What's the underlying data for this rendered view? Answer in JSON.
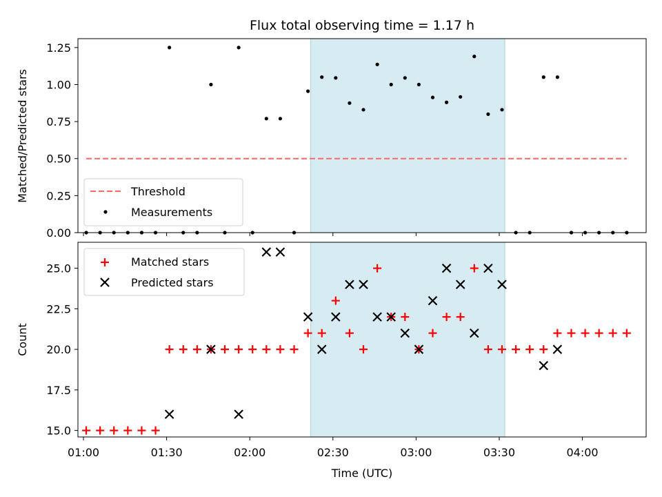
{
  "chart_data": [
    {
      "type": "scatter",
      "title": "Flux total observing time = 1.17 h",
      "xlabel": "",
      "ylabel": "Matched/Predicted stars",
      "ylim": [
        0,
        1.31
      ],
      "yticks": [
        "0.00",
        "0.25",
        "0.50",
        "0.75",
        "1.00",
        "1.25"
      ],
      "ytick_values": [
        0,
        0.25,
        0.5,
        0.75,
        1.0,
        1.25
      ],
      "legend_position": "lower-left",
      "highlight_span": {
        "start": "02:22",
        "end": "03:32",
        "color": "#add8e6"
      },
      "threshold": {
        "name": "Threshold",
        "value": 0.5,
        "x_start": "01:01",
        "x_end": "04:16",
        "color": "#ff6666",
        "style": "dashed"
      },
      "series": [
        {
          "name": "Measurements",
          "color": "#000000",
          "marker": "dot",
          "x": [
            "01:01",
            "01:06",
            "01:11",
            "01:16",
            "01:21",
            "01:26",
            "01:31",
            "01:36",
            "01:41",
            "01:46",
            "01:51",
            "01:56",
            "02:01",
            "02:06",
            "02:11",
            "02:16",
            "02:21",
            "02:26",
            "02:31",
            "02:36",
            "02:41",
            "02:46",
            "02:51",
            "02:56",
            "03:01",
            "03:06",
            "03:11",
            "03:16",
            "03:21",
            "03:26",
            "03:31",
            "03:36",
            "03:41",
            "03:46",
            "03:51",
            "03:56",
            "04:01",
            "04:06",
            "04:11",
            "04:16"
          ],
          "y": [
            0,
            0,
            0,
            0,
            0,
            0,
            1.25,
            0,
            0,
            1.0,
            0,
            1.25,
            0,
            0.77,
            0.77,
            0,
            0.955,
            1.05,
            1.045,
            0.875,
            0.83,
            1.136,
            1.0,
            1.045,
            1.0,
            0.913,
            0.88,
            0.917,
            1.19,
            0.8,
            0.83,
            0,
            0,
            1.05,
            1.05,
            0,
            0,
            0,
            0,
            0
          ]
        }
      ]
    },
    {
      "type": "scatter",
      "xlabel": "Time (UTC)",
      "ylabel": "Count",
      "ylim": [
        14.6,
        26.6
      ],
      "yticks": [
        "15.0",
        "17.5",
        "20.0",
        "22.5",
        "25.0"
      ],
      "ytick_values": [
        15,
        17.5,
        20,
        22.5,
        25
      ],
      "xlim": [
        "00:58",
        "04:23"
      ],
      "xticks": [
        "01:00",
        "01:30",
        "02:00",
        "02:30",
        "03:00",
        "03:30",
        "04:00"
      ],
      "legend_position": "top-left",
      "highlight_span": {
        "start": "02:22",
        "end": "03:32",
        "color": "#add8e6"
      },
      "series": [
        {
          "name": "Matched stars",
          "color": "#ff0000",
          "marker": "plus",
          "x": [
            "01:01",
            "01:06",
            "01:11",
            "01:16",
            "01:21",
            "01:26",
            "01:31",
            "01:36",
            "01:41",
            "01:46",
            "01:51",
            "01:56",
            "02:01",
            "02:06",
            "02:11",
            "02:16",
            "02:21",
            "02:26",
            "02:31",
            "02:36",
            "02:41",
            "02:46",
            "02:51",
            "02:56",
            "03:01",
            "03:06",
            "03:11",
            "03:16",
            "03:21",
            "03:26",
            "03:31",
            "03:36",
            "03:41",
            "03:46",
            "03:51",
            "03:56",
            "04:01",
            "04:06",
            "04:11",
            "04:16"
          ],
          "y": [
            15,
            15,
            15,
            15,
            15,
            15,
            20,
            20,
            20,
            20,
            20,
            20,
            20,
            20,
            20,
            20,
            21,
            21,
            23,
            21,
            20,
            25,
            22,
            22,
            20,
            21,
            22,
            22,
            25,
            20,
            20,
            20,
            20,
            20,
            21,
            21,
            21,
            21,
            21,
            21
          ]
        },
        {
          "name": "Predicted stars",
          "color": "#000000",
          "marker": "x",
          "x": [
            "01:31",
            "01:46",
            "01:56",
            "02:06",
            "02:11",
            "02:21",
            "02:26",
            "02:31",
            "02:36",
            "02:41",
            "02:46",
            "02:51",
            "02:56",
            "03:01",
            "03:06",
            "03:11",
            "03:16",
            "03:21",
            "03:26",
            "03:31",
            "03:46",
            "03:51"
          ],
          "y": [
            16,
            20,
            16,
            26,
            26,
            22,
            20,
            22,
            24,
            24,
            22,
            22,
            21,
            20,
            23,
            25,
            24,
            21,
            25,
            24,
            19,
            20
          ]
        }
      ]
    }
  ]
}
